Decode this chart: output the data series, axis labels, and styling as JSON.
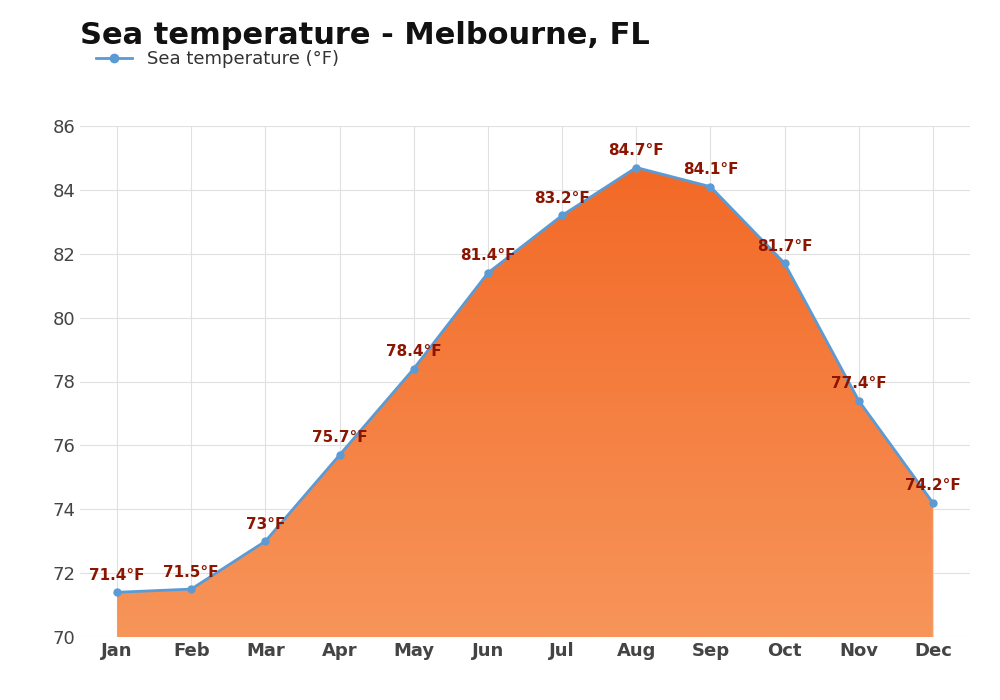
{
  "title": "Sea temperature - Melbourne, FL",
  "legend_label": "Sea temperature (°F)",
  "months": [
    "Jan",
    "Feb",
    "Mar",
    "Apr",
    "May",
    "Jun",
    "Jul",
    "Aug",
    "Sep",
    "Oct",
    "Nov",
    "Dec"
  ],
  "values": [
    71.4,
    71.5,
    73.0,
    75.7,
    78.4,
    81.4,
    83.2,
    84.7,
    84.1,
    81.7,
    77.4,
    74.2
  ],
  "labels": [
    "71.4°F",
    "71.5°F",
    "73°F",
    "75.7°F",
    "78.4°F",
    "81.4°F",
    "83.2°F",
    "84.7°F",
    "84.1°F",
    "81.7°F",
    "77.4°F",
    "74.2°F"
  ],
  "ylim": [
    70,
    86
  ],
  "yticks": [
    70,
    72,
    74,
    76,
    78,
    80,
    82,
    84,
    86
  ],
  "line_color": "#5b9bd5",
  "fill_color_dark": "#f26522",
  "fill_color_light": "#f7955a",
  "marker_color": "#5b9bd5",
  "label_color": "#8b1500",
  "title_fontsize": 22,
  "legend_fontsize": 13,
  "axis_label_fontsize": 13,
  "data_label_fontsize": 11,
  "background_color": "#ffffff",
  "grid_color": "#e0e0e0",
  "tick_label_color": "#444444"
}
